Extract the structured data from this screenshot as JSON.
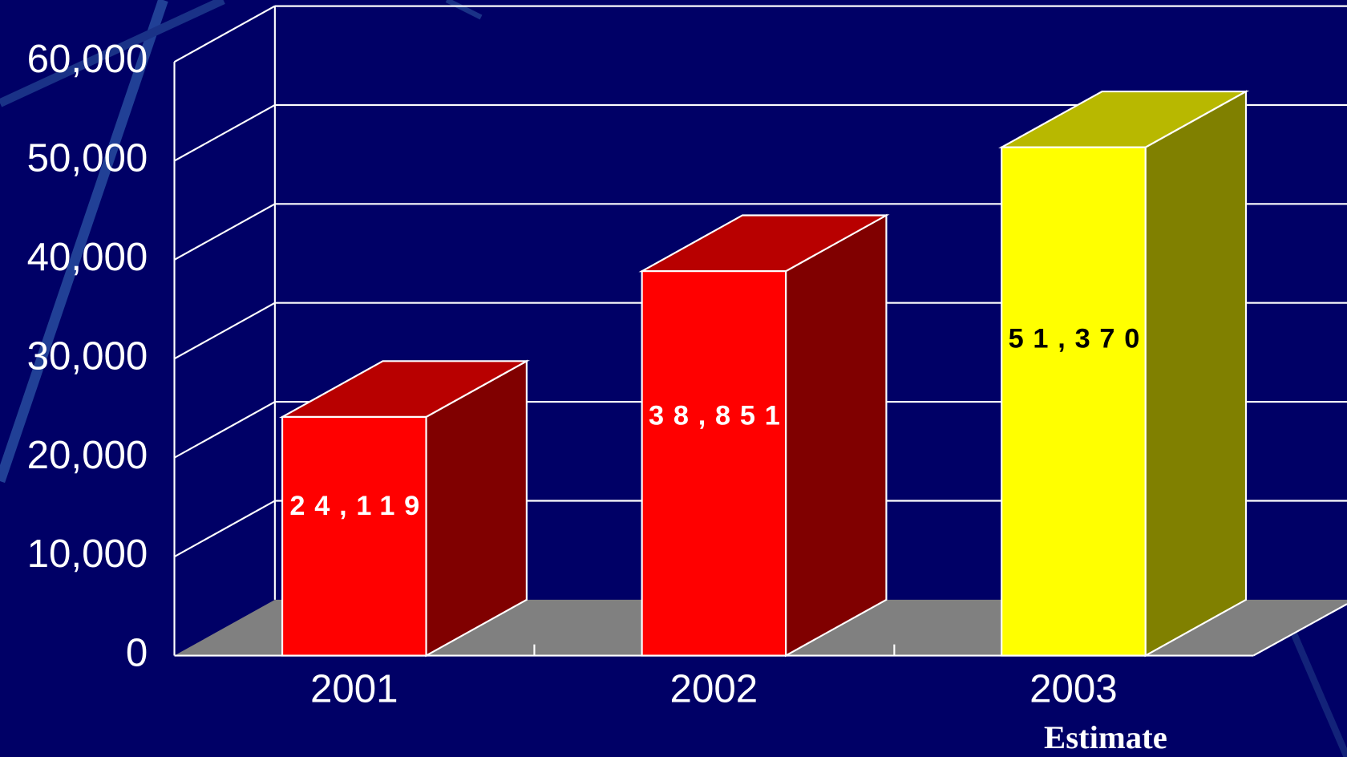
{
  "chart_data": {
    "type": "bar3d",
    "categories": [
      "2001",
      "2002",
      "2003"
    ],
    "values": [
      24119,
      38851,
      51370
    ],
    "value_labels": [
      "24,119",
      "38,851",
      "51,370"
    ],
    "colors": [
      "#ff0000",
      "#ff0000",
      "#ffff00"
    ],
    "label_colors": [
      "#ffffff",
      "#ffffff",
      "#000000"
    ],
    "ylim": [
      0,
      60000
    ],
    "yticks": [
      0,
      {
        "value": 10000,
        "label": "10,000"
      },
      {
        "value": 20000,
        "label": "20,000"
      },
      {
        "value": 30000,
        "label": "30,000"
      },
      {
        "value": 40000,
        "label": "40,000"
      },
      {
        "value": 50000,
        "label": "50,000"
      },
      {
        "value": 60000,
        "label": "60,000"
      }
    ],
    "grid": true,
    "annotation": "Estimate"
  }
}
